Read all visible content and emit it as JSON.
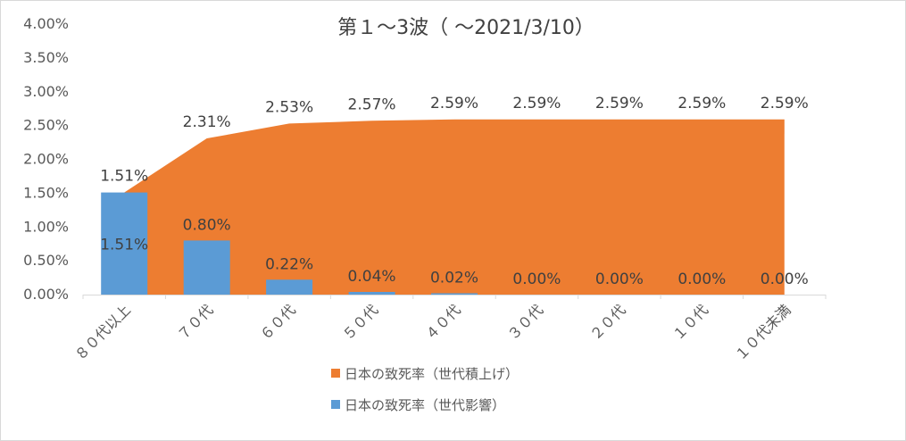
{
  "chart_data": {
    "type": "bar",
    "title": "第１～3波（ ～2021/3/10）",
    "categories": [
      "８０代以上",
      "７０代",
      "６０代",
      "５０代",
      "４０代",
      "３０代",
      "２０代",
      "１０代",
      "１０代未満"
    ],
    "ylim": [
      0,
      4.0
    ],
    "yticks": [
      "0.00%",
      "0.50%",
      "1.00%",
      "1.50%",
      "2.00%",
      "2.50%",
      "3.00%",
      "3.50%",
      "4.00%"
    ],
    "series": [
      {
        "name": "日本の致死率（世代積上げ）",
        "type": "area",
        "color": "#ED7D31",
        "values": [
          1.51,
          2.31,
          2.53,
          2.57,
          2.59,
          2.59,
          2.59,
          2.59,
          2.59
        ],
        "labels": [
          "1.51%",
          "2.31%",
          "2.53%",
          "2.57%",
          "2.59%",
          "2.59%",
          "2.59%",
          "2.59%",
          "2.59%"
        ]
      },
      {
        "name": "日本の致死率（世代影響）",
        "type": "bar",
        "color": "#5B9BD5",
        "values": [
          1.51,
          0.8,
          0.22,
          0.04,
          0.02,
          0.0,
          0.0,
          0.0,
          0.0
        ],
        "labels": [
          "1.51%",
          "0.80%",
          "0.22%",
          "0.04%",
          "0.02%",
          "0.00%",
          "0.00%",
          "0.00%",
          "0.00%"
        ]
      }
    ],
    "legend_position": "bottom",
    "grid": false
  }
}
